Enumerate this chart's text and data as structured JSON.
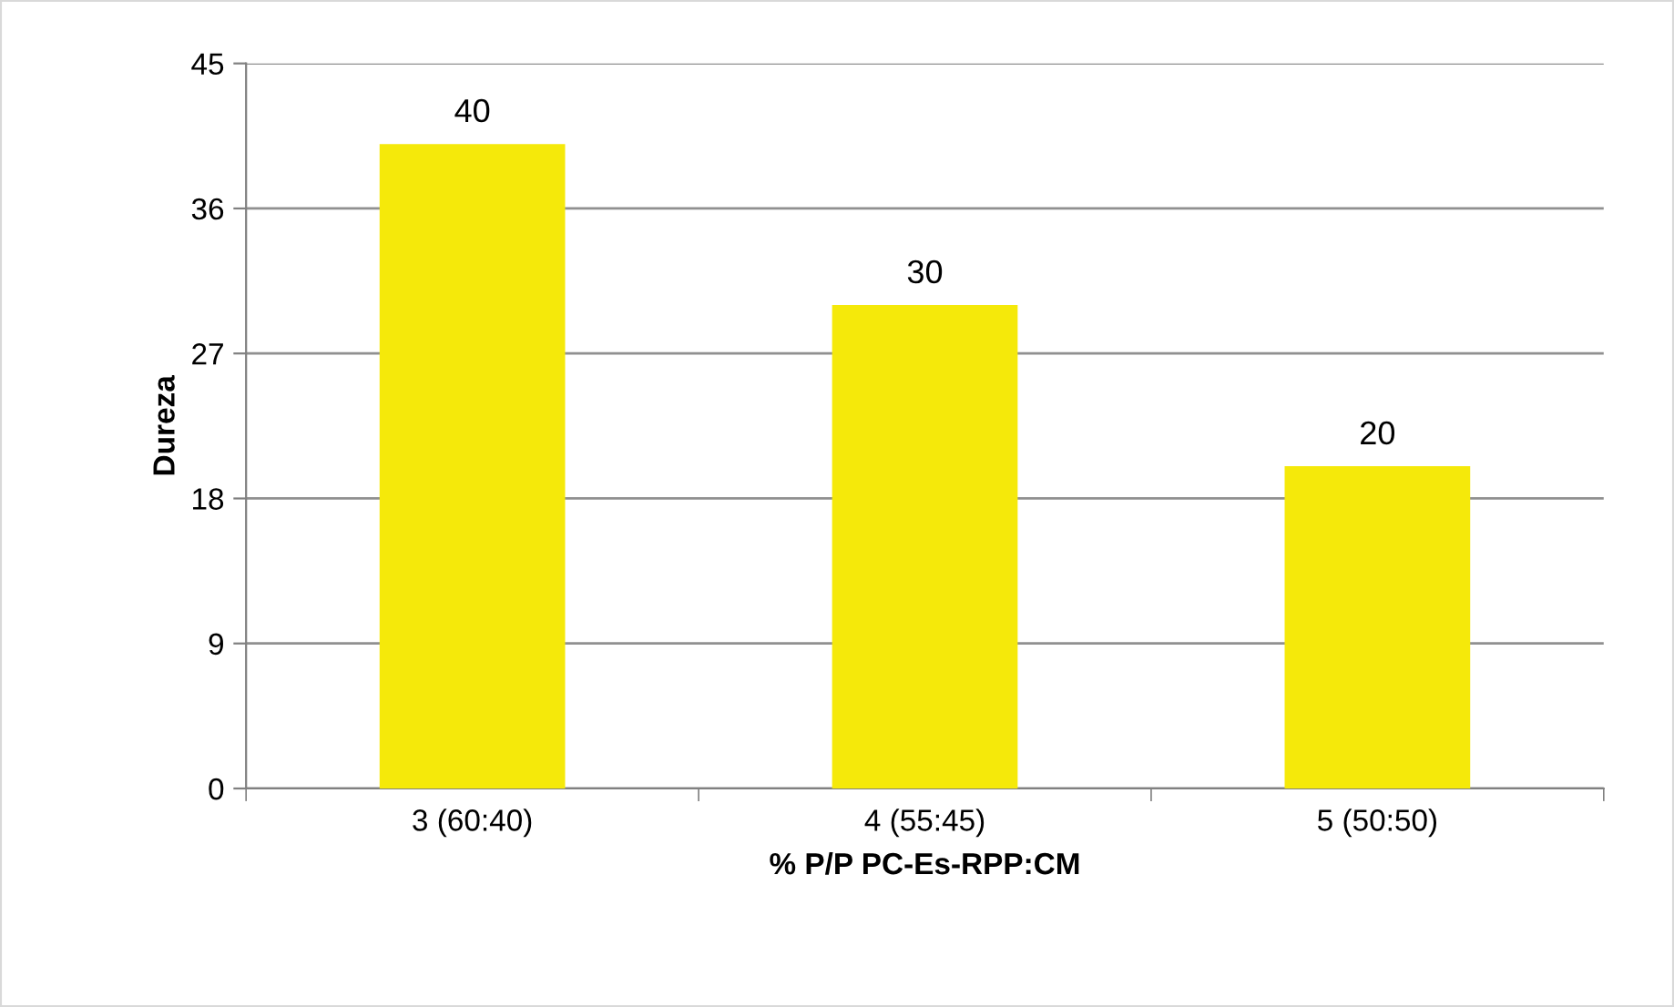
{
  "chart_data": {
    "type": "bar",
    "xlabel": "% P/P PC-Es-RPP:CM",
    "ylabel": "Dureza",
    "categories": [
      "3 (60:40)",
      "4 (55:45)",
      "5 (50:50)"
    ],
    "values": [
      40,
      30,
      20
    ],
    "color": "#f5e90a",
    "ylim": [
      0,
      45
    ],
    "yticks": [
      0,
      9,
      18,
      27,
      36,
      45
    ],
    "grid": "y",
    "data_labels": true
  }
}
